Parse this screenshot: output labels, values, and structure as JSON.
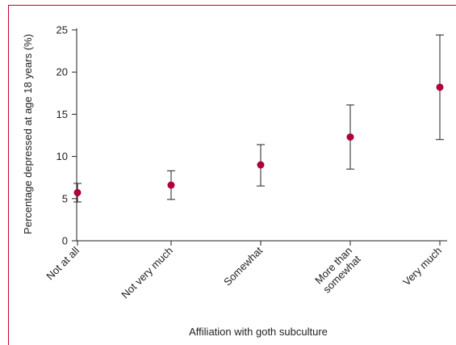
{
  "colors": {
    "frame": "#c3002f",
    "point": "#b0003a",
    "axis": "#222222",
    "text": "#222222"
  },
  "chart_data": {
    "type": "scatter",
    "xlabel": "Affiliation with goth subculture",
    "ylabel": "Percentage depressed at age 18 years (%)",
    "categories": [
      [
        "Not at all"
      ],
      [
        "Not very much"
      ],
      [
        "Somewhat"
      ],
      [
        "More than",
        "somewhat"
      ],
      [
        "Very much"
      ]
    ],
    "values": [
      5.7,
      6.6,
      9.0,
      12.3,
      18.2
    ],
    "lower": [
      4.6,
      4.9,
      6.5,
      8.5,
      12.0
    ],
    "upper": [
      6.8,
      8.3,
      11.4,
      16.1,
      24.4
    ],
    "yticks": [
      "0",
      "5",
      "10",
      "15",
      "20",
      "25"
    ],
    "ylim": [
      0,
      25
    ],
    "grid": false,
    "error_bars": true
  }
}
